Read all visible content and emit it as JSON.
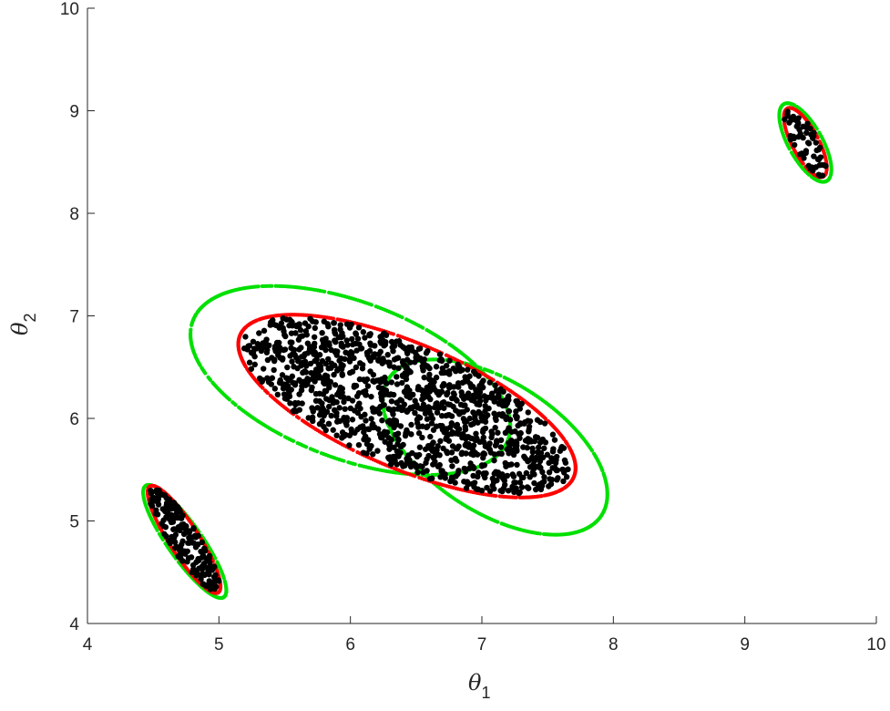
{
  "chart_data": {
    "type": "scatter",
    "title": "",
    "xlabel": {
      "symbol": "θ",
      "subscript": "1"
    },
    "ylabel": {
      "symbol": "θ",
      "subscript": "2"
    },
    "xlim": [
      4,
      10
    ],
    "ylim": [
      4,
      10
    ],
    "xticks": [
      "4",
      "5",
      "6",
      "7",
      "8",
      "9",
      "10"
    ],
    "yticks": [
      "4",
      "5",
      "6",
      "7",
      "8",
      "9",
      "10"
    ],
    "grid": false,
    "legend": "none",
    "colors": {
      "samples": "#000000",
      "true_boundary": "#ff0000",
      "estimated_boundary": "#00e000",
      "axis": "#262626"
    },
    "ellipses": [
      {
        "name": "true-large",
        "color": "#ff0000",
        "cx": 6.43,
        "cy": 6.12,
        "semi_major": 1.45,
        "semi_minor": 0.58,
        "angle_deg": -30.6
      },
      {
        "name": "true-small-lower",
        "color": "#ff0000",
        "cx": 4.735,
        "cy": 4.82,
        "semi_major": 0.58,
        "semi_minor": 0.12,
        "angle_deg": -63.9
      },
      {
        "name": "true-small-upper",
        "color": "#ff0000",
        "cx": 9.46,
        "cy": 8.69,
        "semi_major": 0.36,
        "semi_minor": 0.105,
        "angle_deg": -68.7
      },
      {
        "name": "est-large-a",
        "color": "#00e000",
        "cx": 6.0,
        "cy": 6.37,
        "semi_major": 1.34,
        "semi_minor": 0.73,
        "angle_deg": -30.0
      },
      {
        "name": "est-large-b",
        "color": "#00e000",
        "cx": 7.1,
        "cy": 5.72,
        "semi_major": 1.06,
        "semi_minor": 0.58,
        "angle_deg": -45.0
      },
      {
        "name": "est-small-lower",
        "color": "#00e000",
        "cx": 4.74,
        "cy": 4.8,
        "semi_major": 0.62,
        "semi_minor": 0.14,
        "angle_deg": -62.0
      },
      {
        "name": "est-small-upper",
        "color": "#00e000",
        "cx": 9.46,
        "cy": 8.69,
        "semi_major": 0.41,
        "semi_minor": 0.135,
        "angle_deg": -68.0
      }
    ],
    "sample_counts": {
      "true-large": 1250,
      "true-small-lower": 190,
      "true-small-upper": 60
    }
  }
}
